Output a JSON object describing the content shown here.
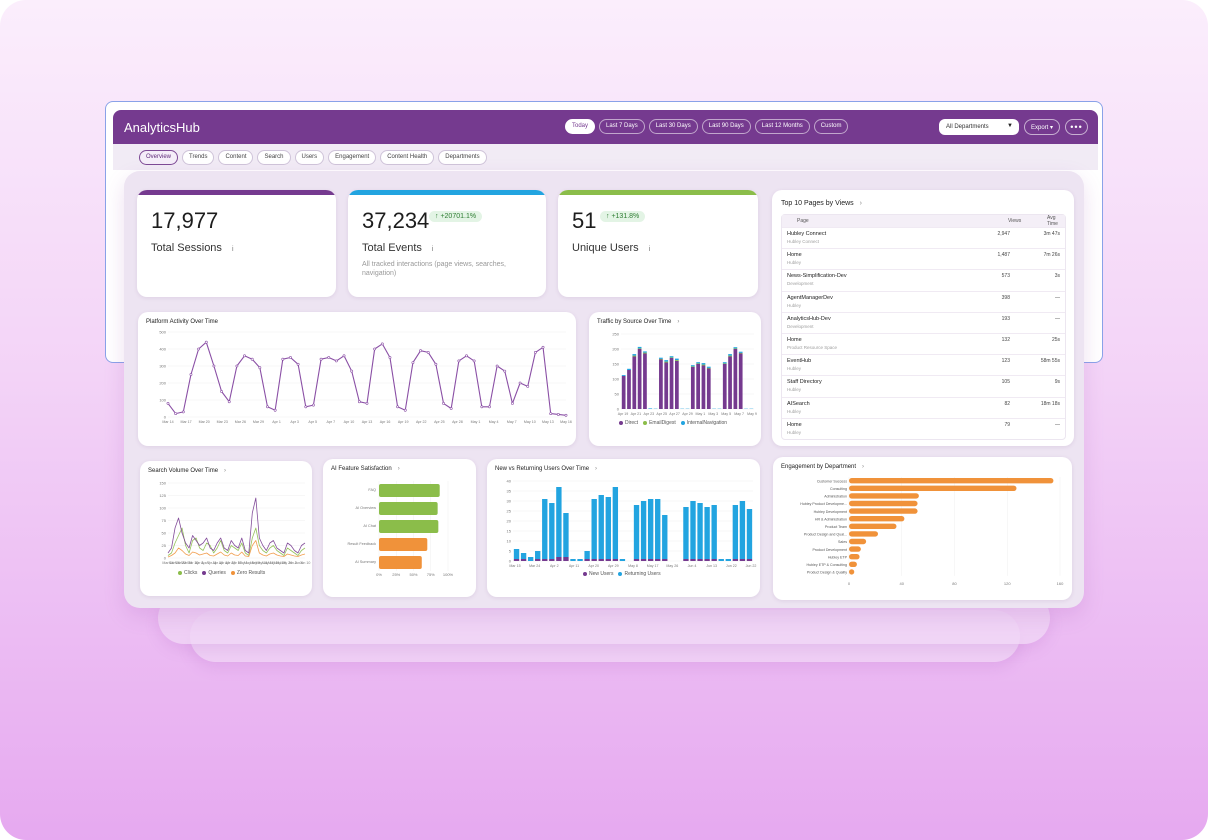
{
  "app": {
    "title": "AnalyticsHub"
  },
  "date_ranges": [
    "Today",
    "Last 7 Days",
    "Last 30 Days",
    "Last 90 Days",
    "Last 12 Months",
    "Custom"
  ],
  "department_filter": {
    "value": "All Departments",
    "caret": "▼"
  },
  "export_label": "Export ▾",
  "more_label": "•••",
  "tabs": [
    "Overview",
    "Trends",
    "Content",
    "Search",
    "Users",
    "Engagement",
    "Content Health",
    "Departments"
  ],
  "kpis": {
    "sessions": {
      "value": "17,977",
      "label": "Total Sessions",
      "info": "i"
    },
    "events": {
      "value": "37,234",
      "label": "Total Events",
      "info": "i",
      "badge": "↑ +20701.1%",
      "description": "All tracked interactions (page views, searches, navigation)"
    },
    "users": {
      "value": "51",
      "label": "Unique Users",
      "info": "i",
      "badge": "↑ +131.8%"
    }
  },
  "colors": {
    "purple": "#753a8f",
    "blue": "#22a4e0",
    "green": "#8bbd4a",
    "orange": "#f0923a",
    "line": "#8a4fa5"
  },
  "top_pages": {
    "title": "Top 10 Pages by Views",
    "chevron": "›",
    "columns": [
      "Page",
      "Views",
      "Avg Time"
    ],
    "rows": [
      {
        "name": "Hubley Connect",
        "sub": "Hubley Connect",
        "views": "2,947",
        "time": "3m 47s"
      },
      {
        "name": "Home",
        "sub": "Hubley",
        "views": "1,487",
        "time": "7m 26s"
      },
      {
        "name": "News-Simplification-Dev",
        "sub": "Development",
        "views": "573",
        "time": "3s"
      },
      {
        "name": "AgentManagerDev",
        "sub": "Hubley",
        "views": "398",
        "time": "—"
      },
      {
        "name": "AnalyticsHub-Dev",
        "sub": "Development",
        "views": "193",
        "time": "—"
      },
      {
        "name": "Home",
        "sub": "Product Resource Space",
        "views": "132",
        "time": "25s"
      },
      {
        "name": "EventHub",
        "sub": "Hubley",
        "views": "123",
        "time": "58m 55s"
      },
      {
        "name": "Staff Directory",
        "sub": "Hubley",
        "views": "105",
        "time": "9s"
      },
      {
        "name": "AISearch",
        "sub": "Hubley",
        "views": "82",
        "time": "18m 18s"
      },
      {
        "name": "Home",
        "sub": "Hubley",
        "views": "79",
        "time": "—"
      }
    ]
  },
  "chart_data": [
    {
      "id": "platform_activity",
      "type": "line",
      "title": "Platform Activity Over Time",
      "ylim": [
        0,
        500
      ],
      "yticks": [
        0,
        100,
        200,
        300,
        400,
        500
      ],
      "x_labels": [
        "Mar 14",
        "Mar 17",
        "Mar 20",
        "Mar 23",
        "Mar 26",
        "Mar 29",
        "Apr 1",
        "Apr 3",
        "Apr 5",
        "Apr 7",
        "Apr 10",
        "Apr 13",
        "Apr 16",
        "Apr 19",
        "Apr 22",
        "Apr 25",
        "Apr 28",
        "May 1",
        "May 4",
        "May 7",
        "May 10",
        "May 13",
        "May 16"
      ],
      "values": [
        80,
        20,
        30,
        250,
        400,
        440,
        300,
        150,
        90,
        300,
        360,
        340,
        290,
        60,
        40,
        340,
        350,
        310,
        60,
        70,
        340,
        350,
        330,
        360,
        270,
        90,
        80,
        400,
        430,
        350,
        60,
        40,
        320,
        390,
        380,
        310,
        80,
        50,
        330,
        360,
        330,
        60,
        60,
        300,
        270,
        80,
        200,
        180,
        380,
        410,
        20,
        15,
        10
      ]
    },
    {
      "id": "traffic_by_source",
      "type": "bar",
      "title": "Traffic by Source Over Time",
      "ylim": [
        0,
        250
      ],
      "yticks": [
        0,
        50,
        100,
        150,
        200,
        250
      ],
      "x_labels": [
        "Apr 19",
        "Apr 21",
        "Apr 23",
        "Apr 25",
        "Apr 27",
        "Apr 29",
        "May 1",
        "May 3",
        "May 5",
        "May 7",
        "May 9"
      ],
      "series": [
        {
          "name": "Direct",
          "values": [
            110,
            130,
            175,
            200,
            185,
            0,
            0,
            165,
            155,
            170,
            160,
            0,
            0,
            140,
            150,
            145,
            135,
            0,
            0,
            150,
            175,
            200,
            185,
            0,
            0
          ]
        },
        {
          "name": "EmailDigest",
          "values": [
            0,
            0,
            3,
            2,
            3,
            0,
            0,
            2,
            3,
            2,
            3,
            0,
            0,
            2,
            2,
            3,
            2,
            0,
            0,
            2,
            3,
            2,
            2,
            0,
            0
          ]
        },
        {
          "name": "InternalNavigation",
          "values": [
            3,
            4,
            5,
            5,
            4,
            2,
            1,
            4,
            5,
            4,
            5,
            1,
            1,
            4,
            4,
            5,
            4,
            1,
            1,
            4,
            5,
            4,
            4,
            1,
            1
          ]
        }
      ]
    },
    {
      "id": "search_volume",
      "type": "line",
      "title": "Search Volume Over Time",
      "ylim": [
        0,
        150
      ],
      "yticks": [
        0,
        25,
        50,
        75,
        100,
        125,
        150
      ],
      "x_labels": [
        "Mar 14",
        "Mar 18",
        "Mar 22",
        "Mar 26",
        "Mar 30",
        "Apr 3",
        "Apr 7",
        "Apr 11",
        "Apr 15",
        "Apr 19",
        "Apr 23",
        "Apr 27",
        "May 1",
        "May 5",
        "May 9",
        "May 13",
        "May 17",
        "May 21",
        "May 25",
        "May 29",
        "Jun 2",
        "Jun 6",
        "Jun 10"
      ],
      "series": [
        {
          "name": "Clicks",
          "values": [
            5,
            10,
            30,
            45,
            60,
            25,
            10,
            35,
            40,
            20,
            15,
            30,
            25,
            10,
            20,
            35,
            15,
            10,
            25,
            20,
            15,
            30,
            10,
            5,
            40,
            60,
            25,
            15,
            10,
            20,
            25,
            15,
            10,
            5,
            20,
            15,
            10,
            5,
            15,
            20
          ]
        },
        {
          "name": "Queries",
          "values": [
            10,
            20,
            60,
            80,
            50,
            30,
            20,
            45,
            35,
            25,
            30,
            40,
            20,
            15,
            30,
            40,
            20,
            15,
            35,
            25,
            20,
            40,
            15,
            10,
            90,
            120,
            40,
            25,
            15,
            30,
            35,
            20,
            15,
            10,
            30,
            25,
            15,
            10,
            25,
            30
          ]
        },
        {
          "name": "Zero Results",
          "values": [
            2,
            5,
            10,
            20,
            15,
            8,
            5,
            12,
            10,
            6,
            8,
            10,
            5,
            4,
            8,
            12,
            6,
            4,
            10,
            6,
            5,
            12,
            4,
            3,
            25,
            35,
            10,
            6,
            4,
            8,
            10,
            6,
            4,
            3,
            8,
            6,
            4,
            3,
            6,
            8
          ]
        }
      ]
    },
    {
      "id": "ai_satisfaction",
      "type": "bar",
      "title": "AI Feature Satisfaction",
      "orientation": "horizontal",
      "xlim": [
        0,
        100
      ],
      "xticks": [
        "0%",
        "25%",
        "50%",
        "75%",
        "100%"
      ],
      "categories": [
        "FAQ",
        "AI Overview",
        "AI Chat",
        "Result Feedback",
        "AI Summary"
      ],
      "values": [
        88,
        85,
        86,
        70,
        62
      ],
      "bar_colors": [
        "#8bbd4a",
        "#8bbd4a",
        "#8bbd4a",
        "#f0923a",
        "#f0923a"
      ]
    },
    {
      "id": "new_vs_returning",
      "type": "bar",
      "title": "New vs Returning Users Over Time",
      "ylim": [
        0,
        40
      ],
      "yticks": [
        0,
        5,
        10,
        15,
        20,
        25,
        30,
        35,
        40
      ],
      "x_labels": [
        "Mar 15",
        "Mar 18",
        "Mar 21",
        "Mar 24",
        "Mar 27",
        "Mar 30",
        "Apr 2",
        "Apr 5",
        "Apr 8",
        "Apr 11",
        "Apr 14",
        "Apr 17",
        "Apr 20",
        "Apr 23",
        "Apr 26",
        "Apr 29",
        "May 2",
        "May 5",
        "May 8",
        "May 11",
        "May 14",
        "May 17",
        "May 20",
        "May 23",
        "May 26",
        "May 29",
        "Jun 1",
        "Jun 4",
        "Jun 7",
        "Jun 10",
        "Jun 13",
        "Jun 16",
        "Jun 19",
        "Jun 22"
      ],
      "series": [
        {
          "name": "New Users",
          "values": [
            1,
            1,
            0,
            1,
            1,
            1,
            2,
            2,
            0,
            0,
            1,
            1,
            1,
            1,
            1,
            0,
            0,
            1,
            1,
            1,
            1,
            1,
            0,
            0,
            1,
            1,
            1,
            1,
            1,
            0,
            0,
            1,
            1,
            1
          ]
        },
        {
          "name": "Returning Users",
          "values": [
            5,
            3,
            2,
            4,
            30,
            28,
            35,
            22,
            1,
            1,
            4,
            30,
            32,
            31,
            36,
            1,
            0,
            27,
            29,
            30,
            30,
            22,
            0,
            0,
            26,
            29,
            28,
            26,
            27,
            1,
            1,
            27,
            29,
            25
          ]
        }
      ]
    },
    {
      "id": "engagement_by_department",
      "type": "bar",
      "title": "Engagement by Department",
      "orientation": "horizontal",
      "xlim": [
        0,
        160
      ],
      "xticks": [
        0,
        40,
        80,
        120,
        160
      ],
      "categories": [
        "Customer Success",
        "Consulting",
        "Administration",
        "Hubley Product Developme...",
        "Hubley Development",
        "HR & Administration",
        "Product Team",
        "Product Design and Qual...",
        "Sales",
        "Product Development",
        "Hubley ETP",
        "Hubley ETP & Consulting",
        "Product Design & Quality"
      ],
      "values": [
        155,
        127,
        53,
        52,
        52,
        42,
        36,
        22,
        13,
        9,
        8,
        6,
        4
      ]
    }
  ]
}
